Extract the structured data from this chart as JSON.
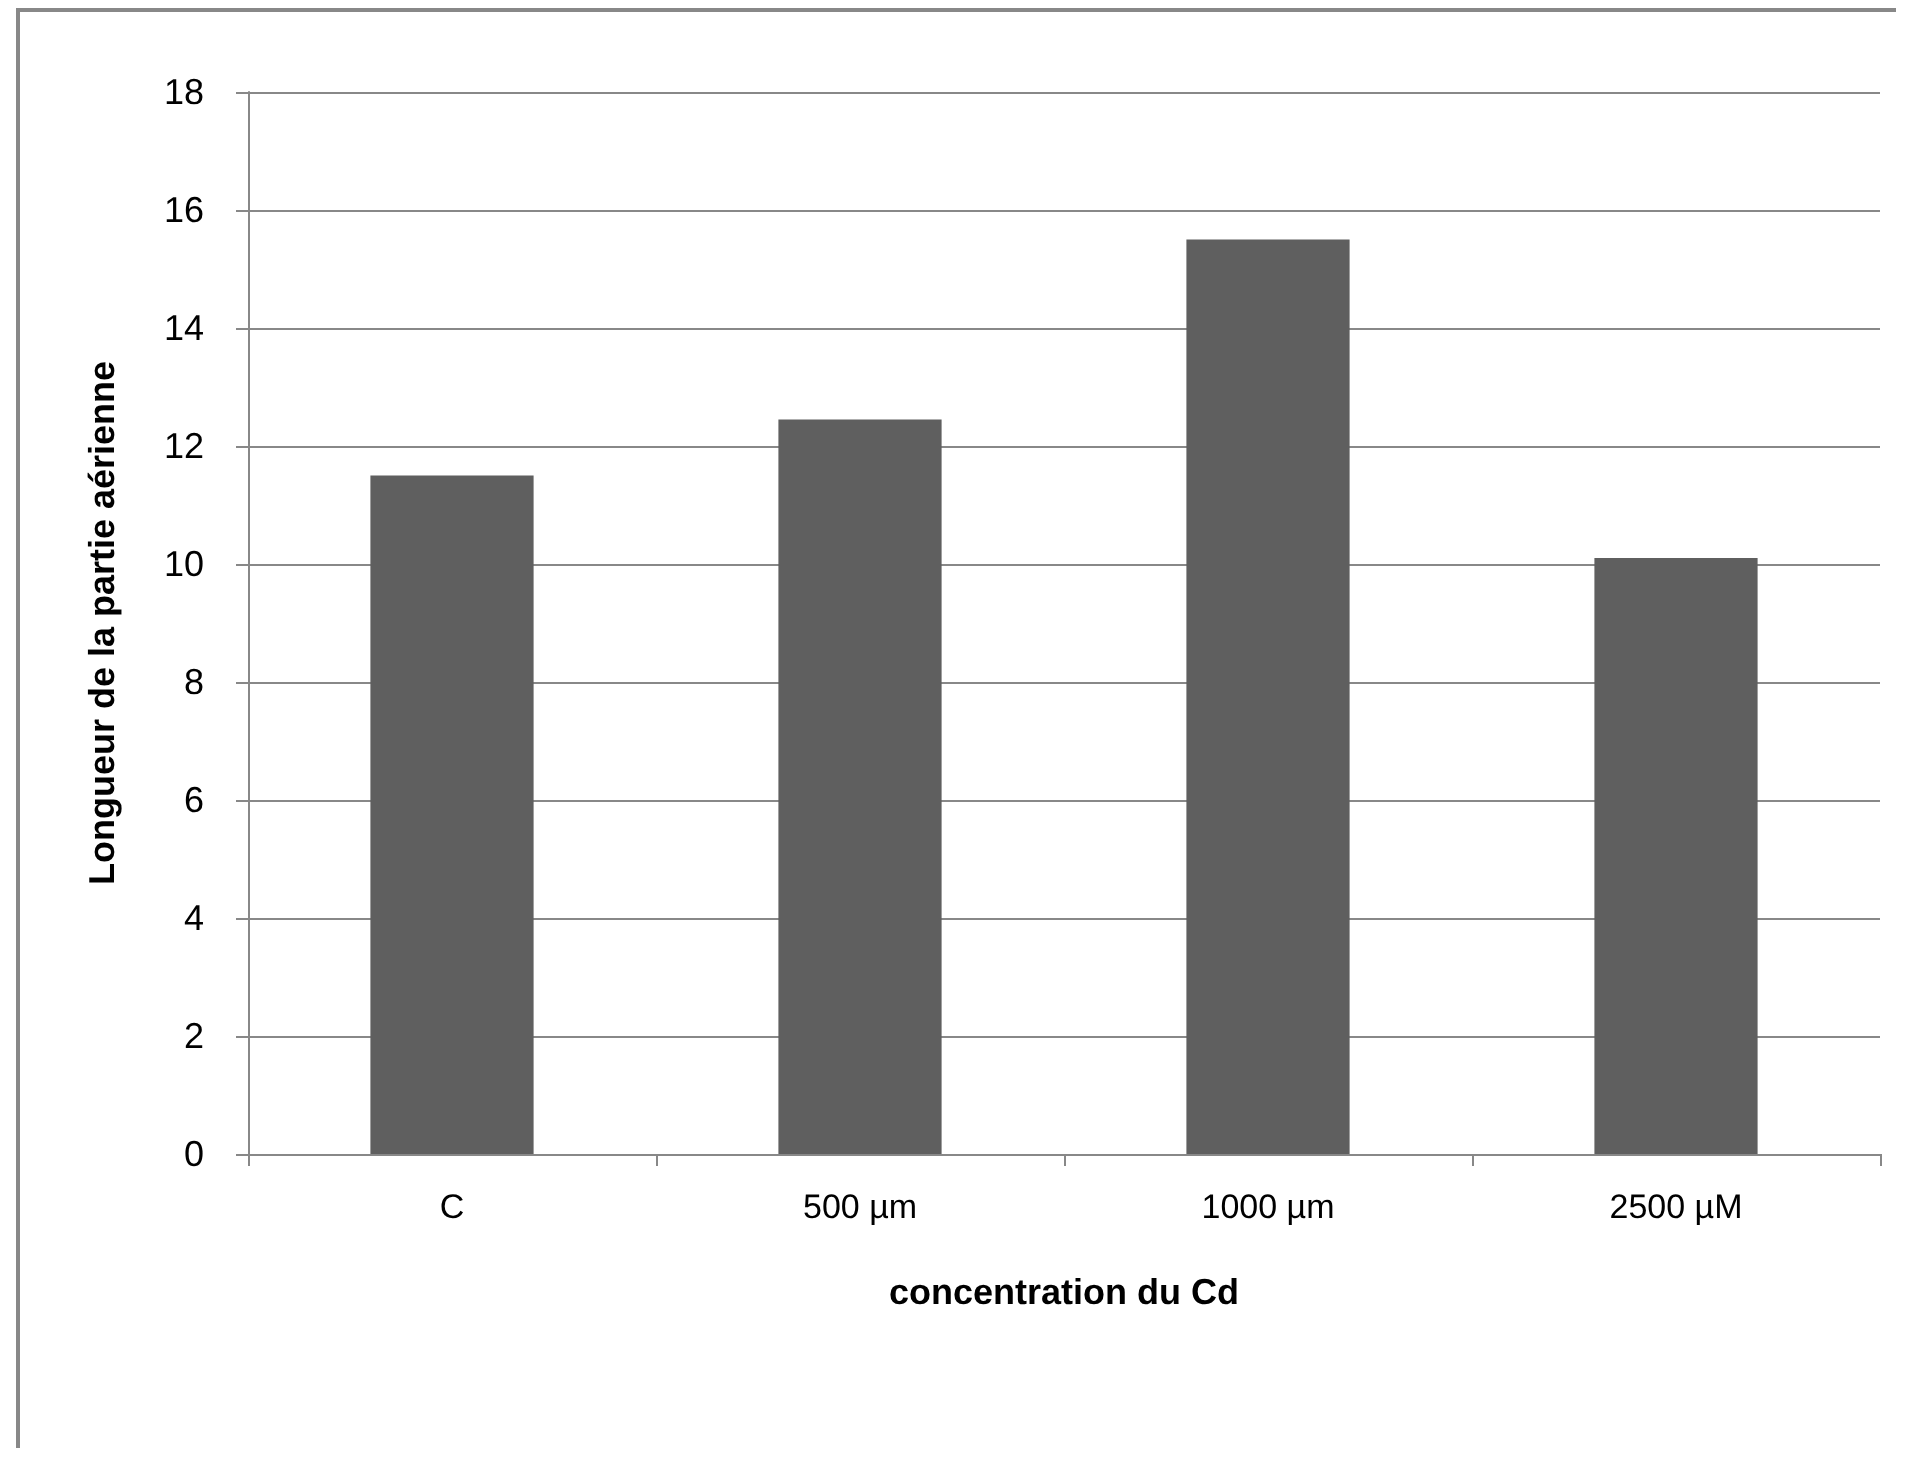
{
  "chart_data": {
    "type": "bar",
    "xlabel": "concentration du Cd",
    "ylabel": "Longueur de la partie aérienne",
    "categories": [
      "C",
      "500 µm",
      "1000 µm",
      "2500 µM"
    ],
    "values": [
      11.5,
      12.45,
      15.5,
      10.1
    ],
    "color": "#5f5f5f",
    "ylim": [
      0,
      18
    ],
    "yticks": [
      0,
      2,
      4,
      6,
      8,
      10,
      12,
      14,
      16,
      18
    ],
    "grid": "y"
  }
}
